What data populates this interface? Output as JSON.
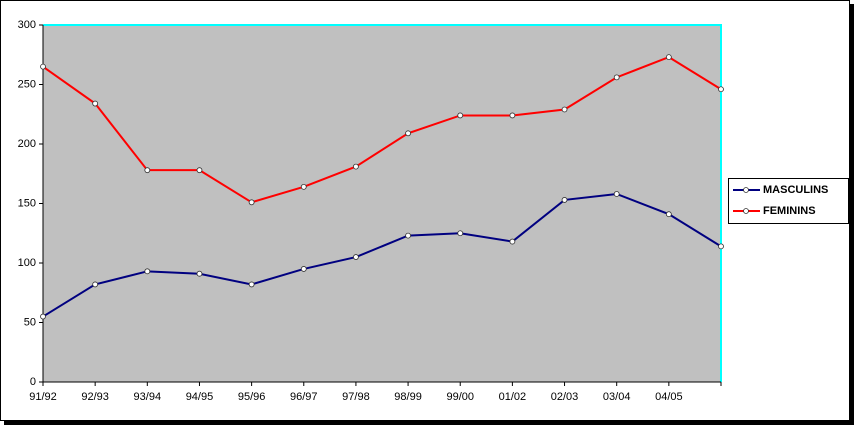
{
  "chart_data": {
    "type": "line",
    "categories": [
      "91/92",
      "92/93",
      "93/94",
      "94/95",
      "95/96",
      "96/97",
      "97/98",
      "98/99",
      "99/00",
      "01/02",
      "02/03",
      "03/04",
      "04/05",
      null
    ],
    "series": [
      {
        "name": "MASCULINS",
        "color": "#000080",
        "values": [
          55,
          82,
          93,
          91,
          82,
          95,
          105,
          123,
          125,
          118,
          153,
          158,
          141,
          114
        ]
      },
      {
        "name": "FEMININS",
        "color": "#ff0000",
        "values": [
          265,
          234,
          178,
          178,
          151,
          164,
          181,
          209,
          224,
          224,
          229,
          256,
          273,
          246
        ]
      }
    ],
    "ylim": [
      0,
      300
    ],
    "yticks": [
      0,
      50,
      100,
      150,
      200,
      250,
      300
    ],
    "plot_background": "#c0c0c0",
    "legend": "right"
  }
}
